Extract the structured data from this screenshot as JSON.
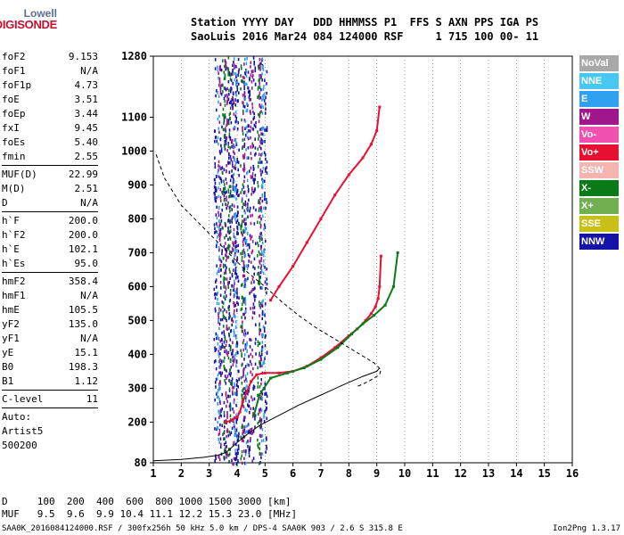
{
  "logo": {
    "line1": "Lowell",
    "line2": "DIGISONDE"
  },
  "header": {
    "line1": "Station YYYY DAY   DDD HHMMSS P1  FFS S AXN PPS IGA PS",
    "line2": "SaoLuis 2016 Mar24 084 124000 RSF     1 715 100 00- 11"
  },
  "params": [
    {
      "type": "row",
      "label": "foF2",
      "value": "9.153"
    },
    {
      "type": "row",
      "label": "foF1",
      "value": "N/A"
    },
    {
      "type": "row",
      "label": "foF1p",
      "value": "4.73"
    },
    {
      "type": "row",
      "label": "foE",
      "value": "3.51"
    },
    {
      "type": "row",
      "label": "foEp",
      "value": "3.44"
    },
    {
      "type": "row",
      "label": "fxI",
      "value": "9.45"
    },
    {
      "type": "row",
      "label": "foEs",
      "value": "5.40"
    },
    {
      "type": "row",
      "label": "fmin",
      "value": "2.55"
    },
    {
      "type": "sep"
    },
    {
      "type": "row",
      "label": "MUF(D)",
      "value": "22.99"
    },
    {
      "type": "row",
      "label": "M(D)",
      "value": "2.51"
    },
    {
      "type": "row",
      "label": "D",
      "value": "N/A"
    },
    {
      "type": "sep"
    },
    {
      "type": "row",
      "label": "h`F",
      "value": "200.0"
    },
    {
      "type": "row",
      "label": "h`F2",
      "value": "200.0"
    },
    {
      "type": "row",
      "label": "h`E",
      "value": "102.1"
    },
    {
      "type": "row",
      "label": "h`Es",
      "value": "95.0"
    },
    {
      "type": "sep"
    },
    {
      "type": "row",
      "label": "hmF2",
      "value": "358.4"
    },
    {
      "type": "row",
      "label": "hmF1",
      "value": "N/A"
    },
    {
      "type": "row",
      "label": "hmE",
      "value": "105.5"
    },
    {
      "type": "row",
      "label": "yF2",
      "value": "135.0"
    },
    {
      "type": "row",
      "label": "yF1",
      "value": "N/A"
    },
    {
      "type": "row",
      "label": "yE",
      "value": "15.1"
    },
    {
      "type": "row",
      "label": "B0",
      "value": "198.3"
    },
    {
      "type": "row",
      "label": "B1",
      "value": "1.12"
    },
    {
      "type": "sep"
    },
    {
      "type": "row",
      "label": "C-level",
      "value": "11"
    },
    {
      "type": "sep"
    },
    {
      "type": "text",
      "value": "Auto:"
    },
    {
      "type": "text",
      "value": "Artist5"
    },
    {
      "type": "text",
      "value": "500200"
    }
  ],
  "legend": [
    {
      "label": "NoVal",
      "color": "#a8a8a8"
    },
    {
      "label": "NNE",
      "color": "#48c8f0"
    },
    {
      "label": "E",
      "color": "#30a0f0"
    },
    {
      "label": "W",
      "color": "#a0168c"
    },
    {
      "label": "Vo-",
      "color": "#f050b0"
    },
    {
      "label": "Vo+",
      "color": "#e81030"
    },
    {
      "label": "SSW",
      "color": "#f4b4b0"
    },
    {
      "label": "X-",
      "color": "#0a7a18"
    },
    {
      "label": "X+",
      "color": "#70b050"
    },
    {
      "label": "SSE",
      "color": "#c8c018"
    },
    {
      "label": "NNW",
      "color": "#1414a8"
    }
  ],
  "bottom": {
    "line1": "D     100  200  400  600  800 1000 1500 3000 [km]",
    "line2": "MUF   9.5  9.6  9.9 10.4 11.1 12.2 15.3 23.0 [MHz]"
  },
  "footer": {
    "left": "SAA0K_2016084124000.RSF / 300fx256h 50 kHz 5.0 km / DPS-4 SAA0K 903 / 2.6 S 315.8 E",
    "right": "Ion2Png 1.3.17"
  },
  "chart_data": {
    "type": "scatter",
    "xlim": [
      1,
      16
    ],
    "ylim": [
      80,
      1280
    ],
    "xlabel": "",
    "ylabel": "",
    "x_ticks": [
      1,
      2,
      3,
      4,
      5,
      6,
      7,
      8,
      9,
      10,
      11,
      12,
      13,
      14,
      15,
      16
    ],
    "y_ticks": [
      80,
      200,
      300,
      400,
      500,
      600,
      700,
      800,
      900,
      1000,
      1100,
      1280
    ],
    "grid": true,
    "series": [
      {
        "name": "O-trace",
        "color": "#e81030",
        "x": [
          3.6,
          3.8,
          4.0,
          4.1,
          4.2,
          4.35,
          4.5,
          4.7,
          5.0,
          5.5,
          6.0,
          6.5,
          7.0,
          7.5,
          8.0,
          8.3,
          8.6,
          8.8,
          8.95,
          9.05,
          9.1,
          9.15
        ],
        "y": [
          200,
          205,
          215,
          230,
          260,
          290,
          320,
          340,
          345,
          345,
          350,
          365,
          390,
          420,
          455,
          475,
          500,
          520,
          540,
          565,
          600,
          690
        ]
      },
      {
        "name": "O-2hop",
        "color": "#e81030",
        "x": [
          5.2,
          5.5,
          6.0,
          6.5,
          7.0,
          7.5,
          8.0,
          8.5,
          8.8,
          9.0,
          9.1
        ],
        "y": [
          560,
          600,
          660,
          730,
          800,
          870,
          930,
          980,
          1020,
          1060,
          1130
        ]
      },
      {
        "name": "X-trace",
        "color": "#0a7a18",
        "x": [
          4.6,
          4.8,
          5.2,
          5.8,
          6.4,
          7.0,
          7.6,
          8.1,
          8.5,
          8.9,
          9.3,
          9.6,
          9.75
        ],
        "y": [
          220,
          280,
          330,
          345,
          360,
          385,
          420,
          460,
          490,
          515,
          545,
          600,
          700
        ]
      },
      {
        "name": "profile-dashed",
        "color": "#000000",
        "dashed": true,
        "x": [
          1.1,
          1.4,
          2.0,
          2.6,
          3.2,
          3.8,
          4.4,
          5.0,
          5.6,
          6.2,
          6.8,
          7.4,
          8.0,
          8.5,
          8.9,
          9.15,
          9.1,
          8.7,
          8.3
        ],
        "y": [
          990,
          920,
          840,
          790,
          740,
          690,
          640,
          600,
          555,
          515,
          480,
          450,
          420,
          395,
          375,
          355,
          340,
          320,
          305
        ]
      },
      {
        "name": "profile-solid",
        "color": "#000000",
        "x": [
          1.0,
          2.0,
          2.8,
          3.3,
          3.6,
          3.8,
          4.0,
          4.3,
          4.8,
          5.5,
          6.2,
          7.0,
          7.8,
          8.5,
          9.0,
          9.1
        ],
        "y": [
          86,
          90,
          96,
          102,
          110,
          125,
          140,
          160,
          190,
          220,
          250,
          280,
          310,
          335,
          350,
          360
        ]
      }
    ],
    "scatter_bands": [
      {
        "color": "#1414a8",
        "x": [
          3.2,
          3.4,
          3.55,
          3.7,
          3.8,
          3.95,
          4.0,
          4.25,
          4.4,
          4.6,
          4.85,
          5.0
        ]
      },
      {
        "color": "#a0168c",
        "x": [
          3.35,
          3.6,
          3.85,
          4.2,
          4.5,
          4.8
        ]
      },
      {
        "color": "#0a7a18",
        "x": [
          3.5,
          3.7,
          4.15,
          4.75
        ]
      },
      {
        "color": "#30a0f0",
        "x": [
          3.3,
          3.9,
          4.3,
          4.9
        ]
      }
    ]
  }
}
